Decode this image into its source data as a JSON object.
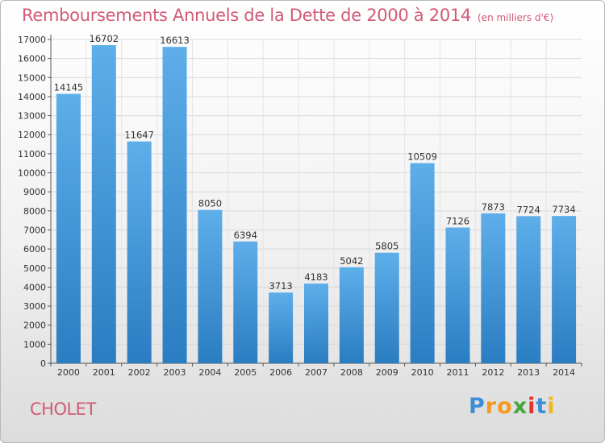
{
  "header": {
    "title": "Remboursements Annuels de la Dette de 2000 à 2014",
    "subtitle": "(en milliers d'€)"
  },
  "footer": {
    "city": "CHOLET",
    "logo_text": "Proxiti"
  },
  "colors": {
    "bar_top": "#5eaeea",
    "bar_bottom": "#2a7dc1",
    "title": "#d25a77",
    "grid": "#d8d8d8"
  },
  "chart_data": {
    "type": "bar",
    "title": "Remboursements Annuels de la Dette de 2000 à 2014",
    "subtitle": "(en milliers d'€)",
    "xlabel": "",
    "ylabel": "",
    "categories": [
      "2000",
      "2001",
      "2002",
      "2003",
      "2004",
      "2005",
      "2006",
      "2007",
      "2008",
      "2009",
      "2010",
      "2011",
      "2012",
      "2013",
      "2014"
    ],
    "values": [
      14145,
      16702,
      11647,
      16613,
      8050,
      6394,
      3713,
      4183,
      5042,
      5805,
      10509,
      7126,
      7873,
      7724,
      7734
    ],
    "ylim": [
      0,
      17000
    ],
    "yticks": [
      0,
      1000,
      2000,
      3000,
      4000,
      5000,
      6000,
      7000,
      8000,
      9000,
      10000,
      11000,
      12000,
      13000,
      14000,
      15000,
      16000,
      17000
    ],
    "grid": true,
    "legend": "none",
    "data_labels": true
  }
}
